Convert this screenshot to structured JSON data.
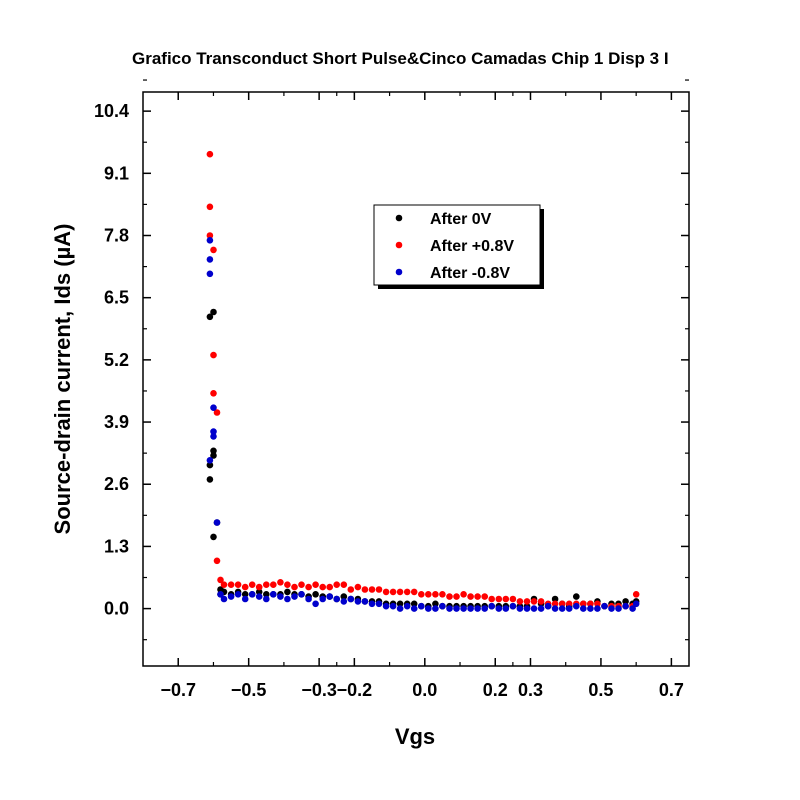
{
  "chart_data": {
    "type": "scatter",
    "title": "Grafico Transconduct Short Pulse&Cinco Camadas Chip 1 Disp 3 I",
    "xlabel": "Vgs",
    "ylabel": "Source-drain current, Ids (µA)",
    "xlim": [
      -0.8,
      0.75
    ],
    "ylim": [
      -1.2,
      10.8
    ],
    "x_ticks": [
      -0.7,
      -0.5,
      -0.3,
      -0.2,
      0.0,
      0.2,
      0.3,
      0.5,
      0.7
    ],
    "x_tick_labels": [
      "−0.7",
      "−0.5",
      "−0.3",
      "−0.2",
      "0.0",
      "0.2",
      "0.3",
      "0.5",
      "0.7"
    ],
    "y_ticks": [
      0.0,
      1.3,
      2.6,
      3.9,
      5.2,
      6.5,
      7.8,
      9.1,
      10.4
    ],
    "y_tick_labels": [
      "0.0",
      "1.3",
      "2.6",
      "3.9",
      "5.2",
      "6.5",
      "7.8",
      "9.1",
      "10.4"
    ],
    "grid": false,
    "legend_position": "top-center",
    "series": [
      {
        "name": "After 0V",
        "color": "#000000",
        "x": [
          -0.61,
          -0.61,
          -0.61,
          -0.6,
          -0.6,
          -0.6,
          -0.6,
          -0.59,
          -0.58,
          -0.58,
          -0.57,
          -0.55,
          -0.53,
          -0.51,
          -0.49,
          -0.47,
          -0.45,
          -0.43,
          -0.41,
          -0.39,
          -0.37,
          -0.35,
          -0.33,
          -0.31,
          -0.29,
          -0.27,
          -0.25,
          -0.23,
          -0.21,
          -0.19,
          -0.17,
          -0.15,
          -0.13,
          -0.11,
          -0.09,
          -0.07,
          -0.05,
          -0.03,
          -0.01,
          0.01,
          0.03,
          0.05,
          0.07,
          0.09,
          0.11,
          0.13,
          0.15,
          0.17,
          0.19,
          0.21,
          0.23,
          0.25,
          0.27,
          0.29,
          0.31,
          0.33,
          0.35,
          0.37,
          0.39,
          0.41,
          0.43,
          0.45,
          0.47,
          0.49,
          0.51,
          0.53,
          0.55,
          0.57,
          0.59,
          0.6
        ],
        "y": [
          2.7,
          3.0,
          6.1,
          6.2,
          3.2,
          3.3,
          1.5,
          1.8,
          0.4,
          0.3,
          0.35,
          0.3,
          0.35,
          0.3,
          0.3,
          0.35,
          0.3,
          0.3,
          0.3,
          0.35,
          0.3,
          0.3,
          0.25,
          0.3,
          0.25,
          0.25,
          0.2,
          0.25,
          0.2,
          0.2,
          0.15,
          0.15,
          0.15,
          0.1,
          0.1,
          0.1,
          0.1,
          0.1,
          0.05,
          0.05,
          0.1,
          0.05,
          0.05,
          0.05,
          0.05,
          0.05,
          0.05,
          0.05,
          0.05,
          0.05,
          0.05,
          0.05,
          0.05,
          0.05,
          0.2,
          0.1,
          0.05,
          0.2,
          0.1,
          0.05,
          0.25,
          0.1,
          0.1,
          0.15,
          0.05,
          0.1,
          0.1,
          0.15,
          0.1,
          0.15
        ]
      },
      {
        "name": "After +0.8V",
        "color": "#ff0000",
        "x": [
          -0.61,
          -0.61,
          -0.61,
          -0.6,
          -0.6,
          -0.6,
          -0.59,
          -0.59,
          -0.58,
          -0.57,
          -0.55,
          -0.53,
          -0.51,
          -0.49,
          -0.47,
          -0.45,
          -0.43,
          -0.41,
          -0.39,
          -0.37,
          -0.35,
          -0.33,
          -0.31,
          -0.29,
          -0.27,
          -0.25,
          -0.23,
          -0.21,
          -0.19,
          -0.17,
          -0.15,
          -0.13,
          -0.11,
          -0.09,
          -0.07,
          -0.05,
          -0.03,
          -0.01,
          0.01,
          0.03,
          0.05,
          0.07,
          0.09,
          0.11,
          0.13,
          0.15,
          0.17,
          0.19,
          0.21,
          0.23,
          0.25,
          0.27,
          0.29,
          0.31,
          0.33,
          0.35,
          0.37,
          0.39,
          0.41,
          0.43,
          0.45,
          0.47,
          0.49,
          0.51,
          0.53,
          0.55,
          0.57,
          0.59,
          0.6
        ],
        "y": [
          9.5,
          8.4,
          7.8,
          7.5,
          5.3,
          4.5,
          4.1,
          1.0,
          0.6,
          0.5,
          0.5,
          0.5,
          0.45,
          0.5,
          0.45,
          0.5,
          0.5,
          0.55,
          0.5,
          0.45,
          0.5,
          0.45,
          0.5,
          0.45,
          0.45,
          0.5,
          0.5,
          0.4,
          0.45,
          0.4,
          0.4,
          0.4,
          0.35,
          0.35,
          0.35,
          0.35,
          0.35,
          0.3,
          0.3,
          0.3,
          0.3,
          0.25,
          0.25,
          0.3,
          0.25,
          0.25,
          0.25,
          0.2,
          0.2,
          0.2,
          0.2,
          0.15,
          0.15,
          0.15,
          0.15,
          0.1,
          0.1,
          0.1,
          0.1,
          0.1,
          0.1,
          0.1,
          0.1,
          0.05,
          0.05,
          0.05,
          0.05,
          0.05,
          0.3
        ]
      },
      {
        "name": "After -0.8V",
        "color": "#0000cc",
        "x": [
          -0.61,
          -0.61,
          -0.61,
          -0.61,
          -0.6,
          -0.6,
          -0.6,
          -0.59,
          -0.58,
          -0.57,
          -0.55,
          -0.53,
          -0.51,
          -0.49,
          -0.47,
          -0.45,
          -0.43,
          -0.41,
          -0.39,
          -0.37,
          -0.35,
          -0.33,
          -0.31,
          -0.29,
          -0.27,
          -0.25,
          -0.23,
          -0.21,
          -0.19,
          -0.17,
          -0.15,
          -0.13,
          -0.11,
          -0.09,
          -0.07,
          -0.05,
          -0.03,
          -0.01,
          0.01,
          0.03,
          0.05,
          0.07,
          0.09,
          0.11,
          0.13,
          0.15,
          0.17,
          0.19,
          0.21,
          0.23,
          0.25,
          0.27,
          0.29,
          0.31,
          0.33,
          0.35,
          0.37,
          0.39,
          0.41,
          0.43,
          0.45,
          0.47,
          0.49,
          0.51,
          0.53,
          0.55,
          0.57,
          0.59,
          0.6
        ],
        "y": [
          7.7,
          7.3,
          7.0,
          3.1,
          4.2,
          3.7,
          3.6,
          1.8,
          0.3,
          0.2,
          0.25,
          0.3,
          0.2,
          0.3,
          0.25,
          0.2,
          0.3,
          0.25,
          0.2,
          0.25,
          0.3,
          0.2,
          0.1,
          0.2,
          0.25,
          0.2,
          0.15,
          0.2,
          0.15,
          0.15,
          0.1,
          0.1,
          0.05,
          0.05,
          0.0,
          0.05,
          0.0,
          0.05,
          0.0,
          0.0,
          0.05,
          0.0,
          0.0,
          0.0,
          0.0,
          0.0,
          0.0,
          0.05,
          0.0,
          0.0,
          0.05,
          0.0,
          0.0,
          0.0,
          0.0,
          0.05,
          0.0,
          0.0,
          0.0,
          0.05,
          0.0,
          0.0,
          0.0,
          0.05,
          0.0,
          0.0,
          0.05,
          0.0,
          0.1
        ]
      }
    ]
  }
}
